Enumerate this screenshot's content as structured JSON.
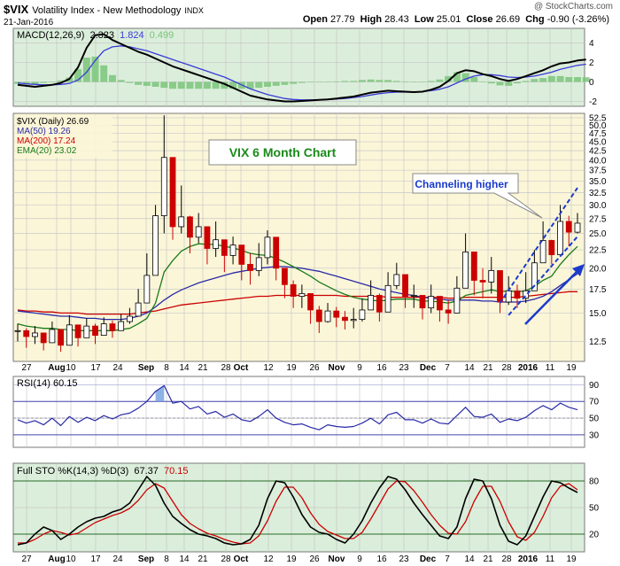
{
  "header": {
    "symbol": "$VIX",
    "name": "Volatility Index - New Methodology",
    "exchange": "INDX",
    "date": "21-Jan-2016",
    "open_label": "Open",
    "open": "27.79",
    "high_label": "High",
    "high": "28.43",
    "low_label": "Low",
    "low": "25.01",
    "close_label": "Close",
    "close": "26.69",
    "chg_label": "Chg",
    "chg": "-0.90 (-3.26%)",
    "credit": "@ StockCharts.com"
  },
  "chart_data": [
    {
      "panel": "macd",
      "type": "line",
      "legend": {
        "label": "MACD(12,26,9)",
        "macd": "2.323",
        "signal": "1.824",
        "hist": "0.499"
      },
      "colors": {
        "macd": "#000000",
        "signal": "#3b3bd6",
        "hist": "#7ac47a",
        "bg": "#d9ecd9"
      },
      "ylim": [
        -2.5,
        5.5
      ],
      "ticks": [
        -2,
        0,
        2,
        4
      ],
      "tick_labels": [
        "-2",
        "0",
        "2",
        "4"
      ],
      "macd": [
        -0.3,
        -0.4,
        -0.5,
        -0.4,
        -0.3,
        -0.1,
        0.3,
        1.5,
        3.5,
        4.8,
        4.9,
        4.3,
        3.9,
        3.5,
        3.1,
        2.8,
        2.4,
        2.0,
        1.6,
        1.3,
        1.0,
        0.7,
        0.4,
        0.1,
        -0.2,
        -0.6,
        -1.0,
        -1.4,
        -1.6,
        -1.8,
        -1.9,
        -2.0,
        -2.0,
        -1.95,
        -1.9,
        -1.85,
        -1.8,
        -1.7,
        -1.6,
        -1.5,
        -1.3,
        -1.1,
        -1.0,
        -0.9,
        -0.95,
        -1.0,
        -1.05,
        -1.0,
        -0.8,
        -0.5,
        0.1,
        0.9,
        1.2,
        1.1,
        0.8,
        0.6,
        0.3,
        0.1,
        0.3,
        0.6,
        0.9,
        1.2,
        1.6,
        1.9,
        2.0,
        2.2,
        2.3
      ],
      "signal": [
        -0.1,
        -0.2,
        -0.25,
        -0.3,
        -0.3,
        -0.25,
        -0.15,
        0.2,
        1.0,
        2.2,
        3.2,
        3.6,
        3.7,
        3.6,
        3.4,
        3.2,
        2.9,
        2.6,
        2.3,
        2.0,
        1.7,
        1.4,
        1.1,
        0.8,
        0.5,
        0.1,
        -0.3,
        -0.7,
        -1.0,
        -1.3,
        -1.5,
        -1.7,
        -1.8,
        -1.85,
        -1.85,
        -1.85,
        -1.8,
        -1.75,
        -1.7,
        -1.6,
        -1.5,
        -1.35,
        -1.2,
        -1.1,
        -1.05,
        -1.05,
        -1.05,
        -1.0,
        -0.9,
        -0.75,
        -0.5,
        -0.1,
        0.3,
        0.6,
        0.75,
        0.75,
        0.65,
        0.5,
        0.45,
        0.5,
        0.6,
        0.8,
        1.0,
        1.3,
        1.5,
        1.7,
        1.82
      ]
    },
    {
      "panel": "price",
      "type": "candlestick",
      "title": "VIX 6 Month Chart",
      "legend": [
        {
          "label": "$VIX (Daily) 26.69",
          "color": "#000000"
        },
        {
          "label": "MA(50) 19.26",
          "color": "#2a2aa8"
        },
        {
          "label": "MA(200) 17.24",
          "color": "#cc0000"
        },
        {
          "label": "EMA(20) 23.02",
          "color": "#1a7a1a"
        }
      ],
      "annotation": "Channeling higher",
      "scale": "log",
      "ylim": [
        11.0,
        54.0
      ],
      "ticks": [
        12.5,
        15.0,
        17.5,
        20.0,
        22.5,
        25.0,
        27.5,
        30.0,
        32.5,
        35.0,
        37.5,
        40.0,
        42.5,
        45.0,
        47.5,
        50.0,
        52.5
      ],
      "tick_labels": [
        "12.5",
        "15.0",
        "17.5",
        "20.0",
        "22.5",
        "25.0",
        "27.5",
        "30.0",
        "32.5",
        "35.0",
        "37.5",
        "40.0",
        "42.5",
        "45.0",
        "47.5",
        "50.0",
        "52.5"
      ],
      "close": [
        13.4,
        12.9,
        13.2,
        12.4,
        13.5,
        12.2,
        13.9,
        12.8,
        13.8,
        13.0,
        14.0,
        13.4,
        14.2,
        14.7,
        16.0,
        19.1,
        28.0,
        40.7,
        26.1,
        27.8,
        24.4,
        26.1,
        22.7,
        24.0,
        21.7,
        23.2,
        20.5,
        19.7,
        21.4,
        24.4,
        20.0,
        18.0,
        16.7,
        17.0,
        15.3,
        14.2,
        15.2,
        14.6,
        14.3,
        14.4,
        15.3,
        16.8,
        15.1,
        17.9,
        19.2,
        16.7,
        16.8,
        15.5,
        16.7,
        15.3,
        15.0,
        17.6,
        22.2,
        18.5,
        18.3,
        19.7,
        16.1,
        17.3,
        16.5,
        17.3,
        20.7,
        23.9,
        21.8,
        27.0,
        25.2,
        26.7
      ],
      "high": [
        14.0,
        13.6,
        13.8,
        13.2,
        14.2,
        13.4,
        14.8,
        13.8,
        14.5,
        14.0,
        14.6,
        14.3,
        14.9,
        15.5,
        17.5,
        22.0,
        30.0,
        53.3,
        31.0,
        34.0,
        28.0,
        28.5,
        25.5,
        27.0,
        24.0,
        24.5,
        23.0,
        22.0,
        23.5,
        25.5,
        23.0,
        20.0,
        18.5,
        18.0,
        17.0,
        15.7,
        16.0,
        15.6,
        15.2,
        15.5,
        16.5,
        18.5,
        17.0,
        19.5,
        20.7,
        18.5,
        18.0,
        16.8,
        18.0,
        16.5,
        16.3,
        19.0,
        25.0,
        21.0,
        20.0,
        21.5,
        18.5,
        19.0,
        18.0,
        19.5,
        22.5,
        27.0,
        24.0,
        30.0,
        28.0,
        28.5
      ],
      "low": [
        12.5,
        12.0,
        12.3,
        11.8,
        12.6,
        11.7,
        13.0,
        12.1,
        12.9,
        12.3,
        13.2,
        12.8,
        13.5,
        14.0,
        15.0,
        17.5,
        22.0,
        25.0,
        24.0,
        25.0,
        22.0,
        23.5,
        20.5,
        21.5,
        19.5,
        20.5,
        18.5,
        18.0,
        19.0,
        20.5,
        18.5,
        16.5,
        15.5,
        15.5,
        14.0,
        13.2,
        14.1,
        13.7,
        13.5,
        13.6,
        14.2,
        15.5,
        14.2,
        16.0,
        17.5,
        15.5,
        15.5,
        14.4,
        15.0,
        14.2,
        14.0,
        15.5,
        19.5,
        16.8,
        16.5,
        17.0,
        15.0,
        15.8,
        15.5,
        16.0,
        18.5,
        21.5,
        20.5,
        23.5,
        23.0,
        25.0
      ],
      "ma50": [
        15.2,
        15.1,
        15.0,
        14.9,
        14.8,
        14.7,
        14.7,
        14.6,
        14.5,
        14.5,
        14.4,
        14.4,
        14.4,
        14.5,
        14.7,
        15.0,
        15.6,
        16.3,
        16.9,
        17.4,
        17.8,
        18.2,
        18.5,
        18.8,
        19.1,
        19.4,
        19.6,
        19.8,
        20.0,
        20.1,
        20.2,
        20.2,
        20.1,
        20.0,
        19.8,
        19.6,
        19.3,
        19.0,
        18.7,
        18.4,
        18.1,
        17.8,
        17.5,
        17.3,
        17.1,
        16.9,
        16.8,
        16.6,
        16.5,
        16.4,
        16.3,
        16.3,
        16.3,
        16.3,
        16.2,
        16.2,
        16.1,
        16.1,
        16.1,
        16.2,
        16.4,
        16.7,
        17.2,
        17.9,
        18.6,
        19.3
      ],
      "ma200": [
        15.3,
        15.2,
        15.2,
        15.1,
        15.1,
        15.0,
        15.0,
        15.0,
        14.9,
        14.9,
        14.9,
        14.9,
        14.9,
        14.9,
        15.0,
        15.1,
        15.2,
        15.4,
        15.6,
        15.8,
        15.9,
        16.0,
        16.1,
        16.2,
        16.3,
        16.4,
        16.5,
        16.6,
        16.7,
        16.7,
        16.8,
        16.8,
        16.8,
        16.8,
        16.8,
        16.8,
        16.8,
        16.8,
        16.7,
        16.7,
        16.7,
        16.7,
        16.7,
        16.6,
        16.6,
        16.6,
        16.6,
        16.6,
        16.6,
        16.6,
        16.5,
        16.5,
        16.6,
        16.6,
        16.6,
        16.6,
        16.6,
        16.6,
        16.6,
        16.7,
        16.8,
        16.9,
        17.0,
        17.1,
        17.2,
        17.2
      ],
      "ema20": [
        14.0,
        13.8,
        13.7,
        13.6,
        13.6,
        13.5,
        13.5,
        13.4,
        13.4,
        13.4,
        13.4,
        13.4,
        13.5,
        13.6,
        14.0,
        14.5,
        16.0,
        19.5,
        21.0,
        22.3,
        23.0,
        23.4,
        23.3,
        23.3,
        23.0,
        22.8,
        22.4,
        22.0,
        21.8,
        21.7,
        21.3,
        20.8,
        20.2,
        19.6,
        19.0,
        18.3,
        17.8,
        17.3,
        16.9,
        16.6,
        16.4,
        16.3,
        16.2,
        16.3,
        16.4,
        16.4,
        16.4,
        16.2,
        16.2,
        16.1,
        16.0,
        16.2,
        16.8,
        17.0,
        17.2,
        17.4,
        17.2,
        17.3,
        17.2,
        17.3,
        17.8,
        18.5,
        19.0,
        20.5,
        21.8,
        23.0
      ]
    },
    {
      "panel": "rsi",
      "type": "line",
      "legend": "RSI(14) 60.15",
      "ylim": [
        15,
        100
      ],
      "ticks": [
        30,
        50,
        70,
        90
      ],
      "tick_labels": [
        "30",
        "50",
        "70",
        "90"
      ],
      "values": [
        48,
        44,
        47,
        42,
        50,
        41,
        52,
        45,
        51,
        47,
        53,
        49,
        54,
        56,
        62,
        70,
        82,
        89,
        68,
        70,
        61,
        64,
        55,
        58,
        51,
        55,
        48,
        46,
        52,
        60,
        50,
        45,
        42,
        43,
        39,
        36,
        42,
        40,
        39,
        40,
        44,
        50,
        43,
        54,
        57,
        48,
        48,
        44,
        49,
        44,
        43,
        53,
        63,
        52,
        51,
        55,
        45,
        49,
        47,
        51,
        59,
        65,
        60,
        68,
        63,
        60
      ]
    },
    {
      "panel": "stochastic",
      "type": "line",
      "legend": {
        "label": "Full STO %K(14,3) %D(3)",
        "k": "67.37",
        "d": "70.15"
      },
      "ylim": [
        0,
        100
      ],
      "ticks": [
        20,
        50,
        80
      ],
      "tick_labels": [
        "20",
        "50",
        "80"
      ],
      "k": [
        8,
        10,
        20,
        28,
        24,
        14,
        20,
        28,
        34,
        38,
        40,
        45,
        48,
        55,
        70,
        85,
        75,
        55,
        40,
        32,
        25,
        20,
        18,
        15,
        10,
        8,
        9,
        14,
        30,
        60,
        80,
        78,
        62,
        42,
        28,
        22,
        20,
        14,
        10,
        20,
        35,
        55,
        72,
        85,
        82,
        70,
        55,
        42,
        30,
        18,
        15,
        28,
        60,
        82,
        80,
        60,
        30,
        12,
        8,
        18,
        40,
        62,
        80,
        78,
        72,
        67
      ],
      "d": [
        10,
        10,
        14,
        20,
        24,
        22,
        19,
        21,
        27,
        33,
        37,
        41,
        44,
        49,
        58,
        70,
        77,
        72,
        57,
        42,
        32,
        26,
        21,
        18,
        14,
        11,
        9,
        10,
        18,
        35,
        57,
        73,
        73,
        61,
        44,
        31,
        23,
        19,
        15,
        15,
        22,
        37,
        54,
        71,
        80,
        79,
        69,
        56,
        42,
        30,
        21,
        20,
        34,
        57,
        74,
        74,
        57,
        34,
        17,
        13,
        22,
        40,
        61,
        74,
        77,
        70
      ]
    }
  ],
  "x_axis": {
    "labels": [
      "27",
      "Aug",
      "10",
      "17",
      "24",
      "Sep",
      "8",
      "14",
      "21",
      "28",
      "Oct",
      "12",
      "19",
      "26",
      "Nov",
      "9",
      "16",
      "23",
      "Dec",
      "7",
      "14",
      "21",
      "28",
      "2016",
      "11",
      "19"
    ],
    "label_x": [
      30,
      64,
      80,
      108,
      133,
      165,
      188,
      208,
      229,
      255,
      272,
      303,
      329,
      355,
      380,
      406,
      431,
      456,
      483,
      505,
      530,
      551,
      572,
      596,
      621,
      645
    ]
  }
}
